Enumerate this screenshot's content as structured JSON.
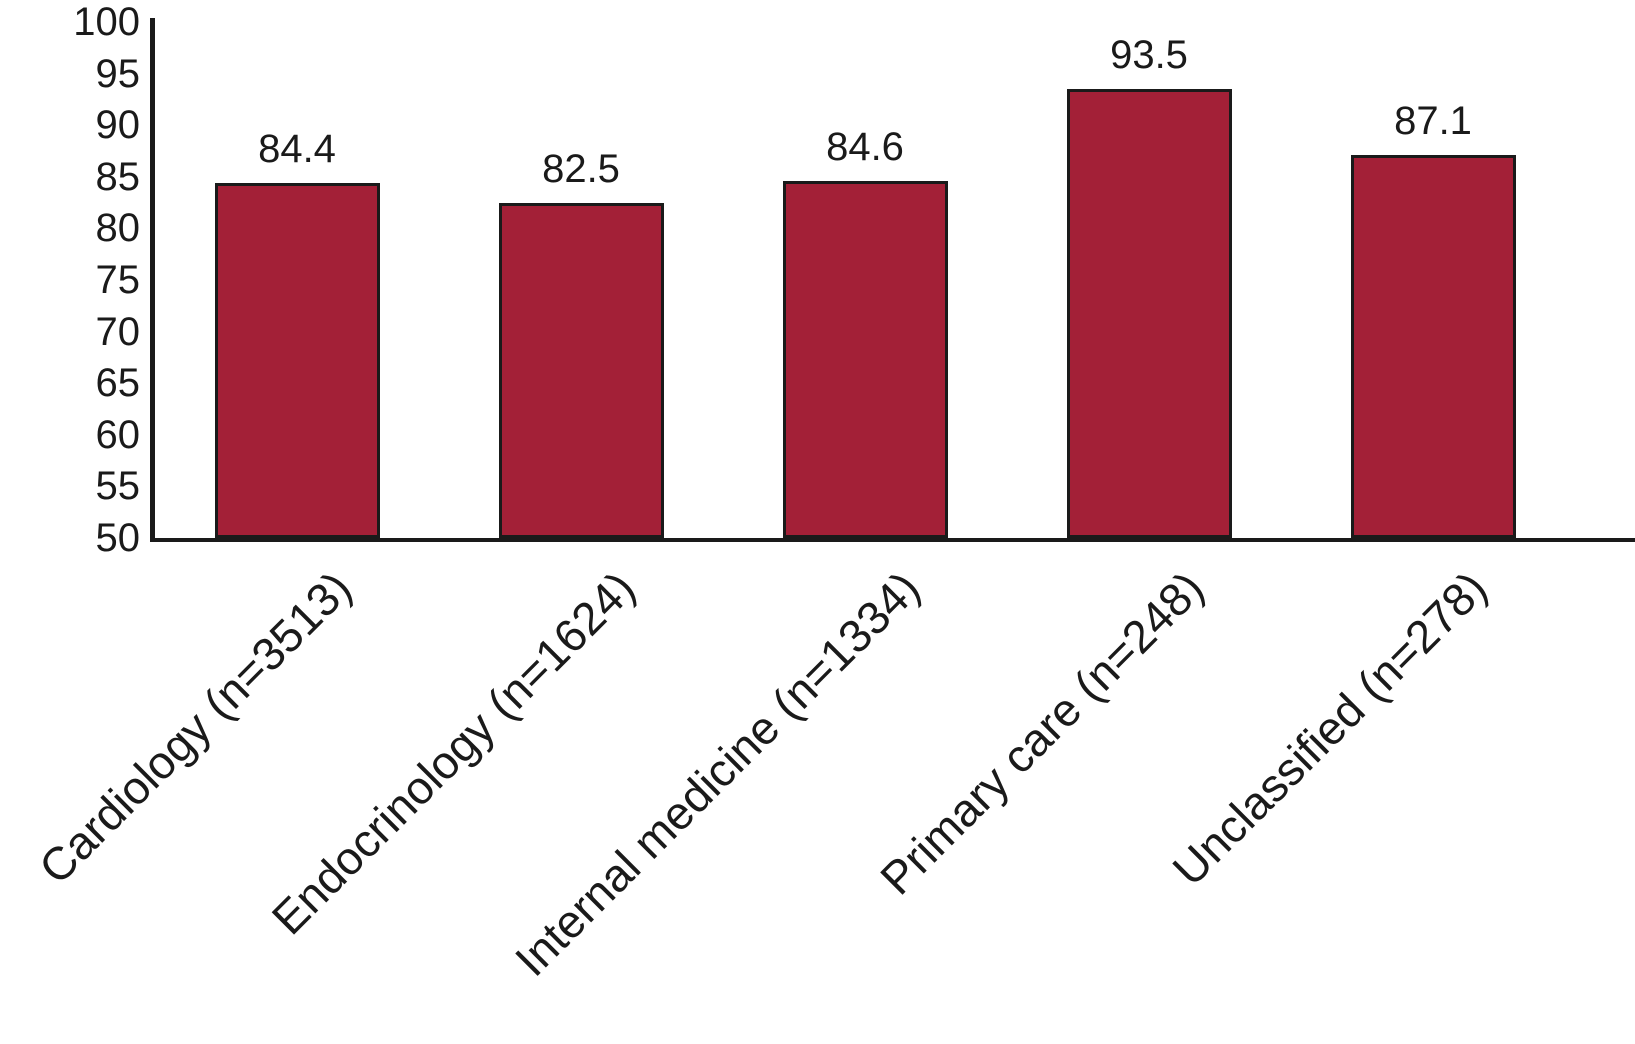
{
  "chart_data": {
    "type": "bar",
    "categories": [
      "Cardiology (n=3513)",
      "Endocrinology (n=1624)",
      "Internal medicine (n=1334)",
      "Primary care (n=248)",
      "Unclassified (n=278)"
    ],
    "values": [
      84.4,
      82.5,
      84.6,
      93.5,
      87.1
    ],
    "value_labels": [
      "84.4",
      "82.5",
      "84.6",
      "93.5",
      "87.1"
    ],
    "title": "",
    "xlabel": "",
    "ylabel": "",
    "ylim": [
      50,
      100
    ],
    "ytick_step": 5,
    "ytick_labels": [
      "100",
      "95",
      "90",
      "85",
      "80",
      "75",
      "70",
      "65",
      "60",
      "55",
      "50"
    ],
    "grid": false,
    "legend_position": "none",
    "bar_color": "#A32037",
    "bar_border_color": "#1a1a1a",
    "axis_color": "#1a1a1a",
    "text_color": "#1a1a1a",
    "background_color": "#ffffff",
    "x_label_rotation_deg": -45
  }
}
